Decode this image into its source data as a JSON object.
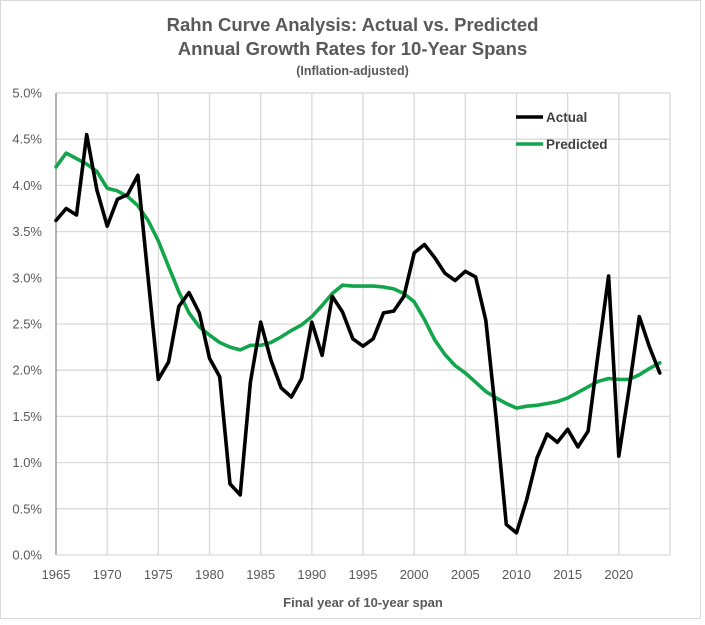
{
  "chart_data": {
    "type": "line",
    "title": "Rahn Curve Analysis: Actual vs. Predicted",
    "subtitle": "Annual Growth Rates for 10-Year Spans",
    "note": "(Inflation-adjusted)",
    "xlabel": "Final year of 10-year span",
    "ylabel": "",
    "xlim": [
      1965,
      2025
    ],
    "ylim": [
      0,
      5.0
    ],
    "x_ticks": [
      "1965",
      "1970",
      "1975",
      "1980",
      "1985",
      "1990",
      "1995",
      "2000",
      "2005",
      "2010",
      "2015",
      "2020"
    ],
    "y_ticks": [
      "0.0%",
      "0.5%",
      "1.0%",
      "1.5%",
      "2.0%",
      "2.5%",
      "3.0%",
      "3.5%",
      "4.0%",
      "4.5%",
      "5.0%"
    ],
    "grid": true,
    "legend_position": "top-right",
    "x": [
      1965,
      1966,
      1967,
      1968,
      1969,
      1970,
      1971,
      1972,
      1973,
      1974,
      1975,
      1976,
      1977,
      1978,
      1979,
      1980,
      1981,
      1982,
      1983,
      1984,
      1985,
      1986,
      1987,
      1988,
      1989,
      1990,
      1991,
      1992,
      1993,
      1994,
      1995,
      1996,
      1997,
      1998,
      1999,
      2000,
      2001,
      2002,
      2003,
      2004,
      2005,
      2006,
      2007,
      2008,
      2009,
      2010,
      2011,
      2012,
      2013,
      2014,
      2015,
      2016,
      2017,
      2018,
      2019,
      2020,
      2021,
      2022,
      2023,
      2024
    ],
    "series": [
      {
        "name": "Actual",
        "color": "#000000",
        "values": [
          3.62,
          3.75,
          3.68,
          4.55,
          3.95,
          3.56,
          3.85,
          3.9,
          4.11,
          3.0,
          1.9,
          2.09,
          2.69,
          2.84,
          2.62,
          2.13,
          1.93,
          0.77,
          0.65,
          1.87,
          2.52,
          2.11,
          1.81,
          1.71,
          1.91,
          2.52,
          2.16,
          2.8,
          2.63,
          2.34,
          2.26,
          2.34,
          2.62,
          2.64,
          2.8,
          3.27,
          3.36,
          3.22,
          3.05,
          2.97,
          3.07,
          3.01,
          2.54,
          1.5,
          0.33,
          0.24,
          0.6,
          1.05,
          1.31,
          1.22,
          1.36,
          1.17,
          1.34,
          2.2,
          3.02,
          1.07,
          1.8,
          2.58,
          2.25,
          1.97
        ]
      },
      {
        "name": "Predicted",
        "color": "#13a54b",
        "values": [
          4.2,
          4.35,
          4.29,
          4.23,
          4.15,
          3.97,
          3.94,
          3.88,
          3.78,
          3.62,
          3.4,
          3.12,
          2.85,
          2.62,
          2.47,
          2.38,
          2.3,
          2.25,
          2.22,
          2.27,
          2.27,
          2.3,
          2.36,
          2.43,
          2.49,
          2.58,
          2.7,
          2.83,
          2.92,
          2.91,
          2.91,
          2.91,
          2.9,
          2.88,
          2.83,
          2.74,
          2.55,
          2.33,
          2.17,
          2.05,
          1.97,
          1.87,
          1.77,
          1.7,
          1.64,
          1.59,
          1.61,
          1.62,
          1.64,
          1.66,
          1.7,
          1.76,
          1.82,
          1.88,
          1.91,
          1.9,
          1.9,
          1.95,
          2.02,
          2.08
        ]
      }
    ]
  }
}
